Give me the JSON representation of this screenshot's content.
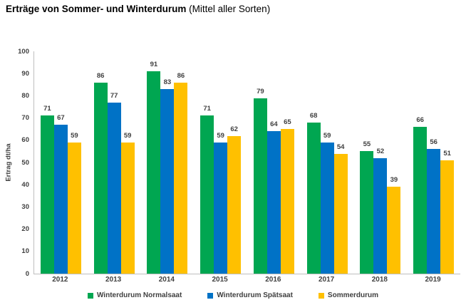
{
  "title": {
    "main": "Erträge von Sommer- und Winterdurum",
    "suffix": " (Mittel aller Sorten)"
  },
  "chart_data": {
    "type": "bar",
    "title": "Erträge von Sommer- und Winterdurum (Mittel aller Sorten)",
    "categories": [
      "2012",
      "2013",
      "2014",
      "2015",
      "2016",
      "2017",
      "2018",
      "2019"
    ],
    "series": [
      {
        "name": "Winterdurum Normalsaat",
        "color": "#00A651",
        "values": [
          71,
          86,
          91,
          71,
          79,
          68,
          55,
          66
        ]
      },
      {
        "name": "Winterdurum Spätsaat",
        "color": "#0072C6",
        "values": [
          67,
          77,
          83,
          59,
          64,
          59,
          52,
          56
        ]
      },
      {
        "name": "Sommerdurum",
        "color": "#FFC000",
        "values": [
          59,
          59,
          86,
          62,
          65,
          54,
          39,
          51
        ]
      }
    ],
    "xlabel": "",
    "ylabel": "Ertrag dt/ha",
    "ylim": [
      0,
      100
    ],
    "ytick_step": 10,
    "grid": false,
    "data_labels": true,
    "legend_position": "bottom",
    "label_color": "#404040",
    "axis_line_color": "#BFBFBF"
  }
}
